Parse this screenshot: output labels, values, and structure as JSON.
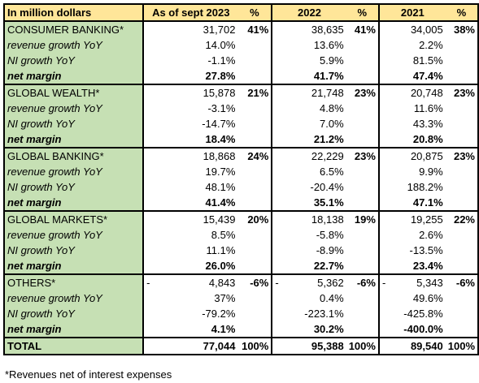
{
  "header": {
    "label": "In million dollars",
    "col1": "As of sept 2023",
    "col2": "%",
    "col3": "2022",
    "col4": "%",
    "col5": "2021",
    "col6": "%"
  },
  "segments": [
    {
      "name": "CONSUMER BANKING*",
      "revenue": {
        "v2023": "31,702",
        "p2023": "41%",
        "v2022": "38,635",
        "p2022": "41%",
        "v2021": "34,005",
        "p2021": "38%"
      },
      "rows": [
        {
          "label": "revenue growth YoY",
          "v2023": "14.0%",
          "v2022": "13.6%",
          "v2021": "2.2%"
        },
        {
          "label": "NI growth YoY",
          "v2023": "-1.1%",
          "v2022": "5.9%",
          "v2021": "81.5%"
        },
        {
          "label": "net margin",
          "v2023": "27.8%",
          "v2022": "41.7%",
          "v2021": "47.4%"
        }
      ]
    },
    {
      "name": "GLOBAL WEALTH*",
      "revenue": {
        "v2023": "15,878",
        "p2023": "21%",
        "v2022": "21,748",
        "p2022": "23%",
        "v2021": "20,748",
        "p2021": "23%"
      },
      "rows": [
        {
          "label": "revenue growth YoY",
          "v2023": "-3.1%",
          "v2022": "4.8%",
          "v2021": "11.6%"
        },
        {
          "label": "NI growth YoY",
          "v2023": "-14.7%",
          "v2022": "7.0%",
          "v2021": "43.3%"
        },
        {
          "label": "net margin",
          "v2023": "18.4%",
          "v2022": "21.2%",
          "v2021": "20.8%"
        }
      ]
    },
    {
      "name": "GLOBAL BANKING*",
      "revenue": {
        "v2023": "18,868",
        "p2023": "24%",
        "v2022": "22,229",
        "p2022": "23%",
        "v2021": "20,875",
        "p2021": "23%"
      },
      "rows": [
        {
          "label": "revenue growth YoY",
          "v2023": "19.7%",
          "v2022": "6.5%",
          "v2021": "9.9%"
        },
        {
          "label": "NI growth YoY",
          "v2023": "48.1%",
          "v2022": "-20.4%",
          "v2021": "188.2%"
        },
        {
          "label": "net margin",
          "v2023": "41.4%",
          "v2022": "35.1%",
          "v2021": "47.1%"
        }
      ]
    },
    {
      "name": "GLOBAL MARKETS*",
      "revenue": {
        "v2023": "15,439",
        "p2023": "20%",
        "v2022": "18,138",
        "p2022": "19%",
        "v2021": "19,255",
        "p2021": "22%"
      },
      "rows": [
        {
          "label": "revenue growth YoY",
          "v2023": "8.5%",
          "v2022": "-5.8%",
          "v2021": "2.6%"
        },
        {
          "label": "NI growth YoY",
          "v2023": "11.1%",
          "v2022": "-8.9%",
          "v2021": "-13.5%"
        },
        {
          "label": "net margin",
          "v2023": "26.0%",
          "v2022": "22.7%",
          "v2021": "23.4%"
        }
      ]
    },
    {
      "name": "OTHERS*",
      "dash": "-",
      "revenue": {
        "v2023": "4,843",
        "p2023": "-6%",
        "v2022": "5,362",
        "p2022": "-6%",
        "v2021": "5,343",
        "p2021": "-6%"
      },
      "rows": [
        {
          "label": "revenue growth YoY",
          "v2023": "37%",
          "v2022": "0.4%",
          "v2021": "49.6%"
        },
        {
          "label": "NI growth YoY",
          "v2023": "-79.2%",
          "v2022": "-223.1%",
          "v2021": "-425.8%"
        },
        {
          "label": "net margin",
          "v2023": "4.1%",
          "v2022": "30.2%",
          "v2021": "-400.0%"
        }
      ]
    }
  ],
  "total": {
    "label": "TOTAL",
    "v2023": "77,044",
    "p2023": "100%",
    "v2022": "95,388",
    "p2022": "100%",
    "v2021": "89,540",
    "p2021": "100%"
  },
  "footnote": "*Revenues net of interest expenses",
  "colors": {
    "label_bg": "#c6e0b4",
    "header_bg": "#ffe699"
  }
}
